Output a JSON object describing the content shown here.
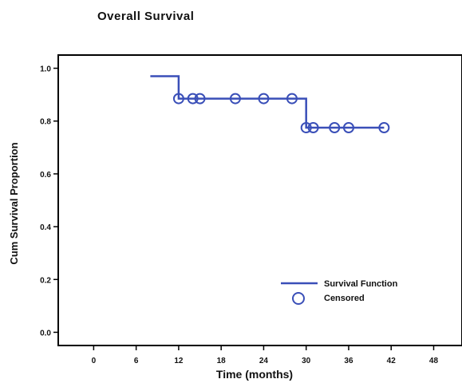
{
  "chart_data": {
    "type": "line",
    "title": "Overall Survival",
    "xlabel": "Time (months)",
    "ylabel": "Cum Survival Proportion",
    "xlim": [
      -5,
      52
    ],
    "ylim": [
      -0.05,
      1.05
    ],
    "x_ticks": [
      0,
      6,
      12,
      18,
      24,
      30,
      36,
      42,
      48
    ],
    "y_ticks": [
      0.0,
      0.2,
      0.4,
      0.6,
      0.8,
      1.0
    ],
    "y_tick_labels": [
      "0.0",
      "0.2",
      "0.4",
      "0.6",
      "0.8",
      "1.0"
    ],
    "grid": false,
    "legend_position": "bottom-right",
    "colors": {
      "series": "#3a4fb8",
      "axis": "#000000"
    },
    "series": [
      {
        "name": "Survival Function",
        "steps": [
          {
            "x": 8,
            "y": 0.97
          },
          {
            "x": 12,
            "y": 0.97
          },
          {
            "x": 12,
            "y": 0.885
          },
          {
            "x": 30,
            "y": 0.885
          },
          {
            "x": 30,
            "y": 0.775
          },
          {
            "x": 41,
            "y": 0.775
          }
        ]
      },
      {
        "name": "Censored",
        "points": [
          {
            "x": 12,
            "y": 0.885
          },
          {
            "x": 14,
            "y": 0.885
          },
          {
            "x": 15,
            "y": 0.885
          },
          {
            "x": 20,
            "y": 0.885
          },
          {
            "x": 24,
            "y": 0.885
          },
          {
            "x": 28,
            "y": 0.885
          },
          {
            "x": 30,
            "y": 0.775
          },
          {
            "x": 31,
            "y": 0.775
          },
          {
            "x": 34,
            "y": 0.775
          },
          {
            "x": 36,
            "y": 0.775
          },
          {
            "x": 41,
            "y": 0.775
          }
        ]
      }
    ],
    "legend": [
      {
        "label": "Survival Function",
        "marker": "line"
      },
      {
        "label": "Censored",
        "marker": "circle"
      }
    ]
  }
}
